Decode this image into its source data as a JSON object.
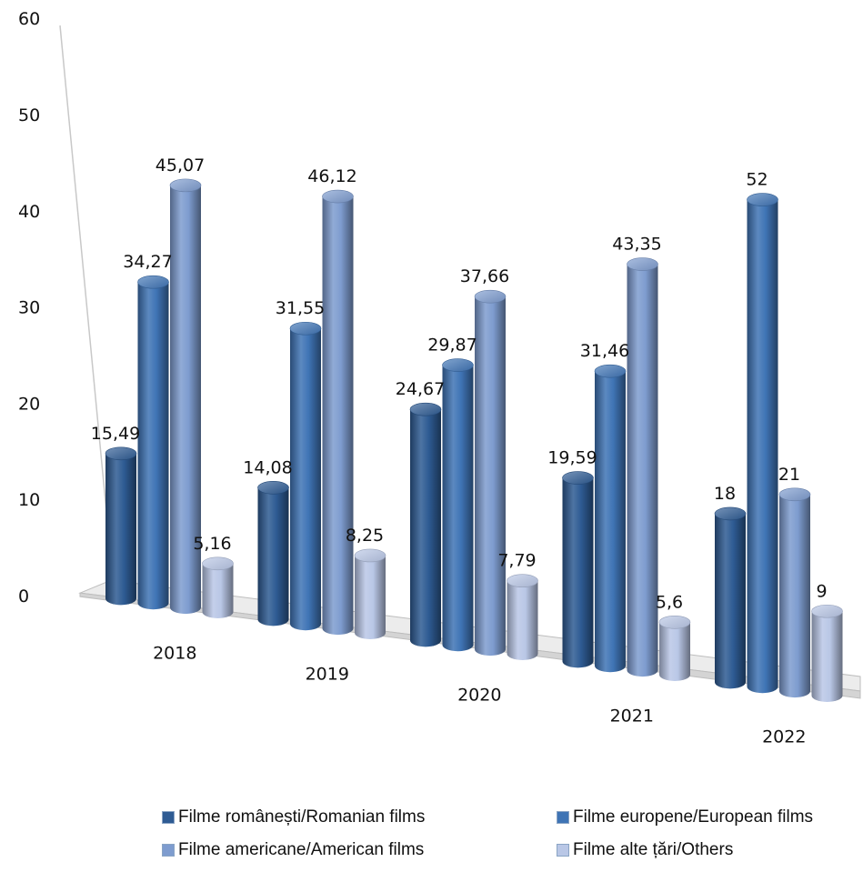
{
  "chart_data": {
    "type": "bar",
    "title": "",
    "xlabel": "",
    "ylabel": "",
    "ylim": [
      0,
      60
    ],
    "yticks": [
      0,
      10,
      20,
      30,
      40,
      50,
      60
    ],
    "categories": [
      "2018",
      "2019",
      "2020",
      "2021",
      "2022"
    ],
    "series": [
      {
        "name": "Filme românești/Romanian films",
        "values": [
          15.49,
          14.08,
          24.67,
          19.59,
          18
        ],
        "labels": [
          "15,49",
          "14,08",
          "24,67",
          "19,59",
          "18"
        ],
        "color": "#2e5b93"
      },
      {
        "name": "Filme europene/European films",
        "values": [
          34.27,
          31.55,
          29.87,
          31.46,
          52
        ],
        "labels": [
          "34,27",
          "31,55",
          "29,87",
          "31,46",
          "52"
        ],
        "color": "#3f74b5"
      },
      {
        "name": "Filme americane/American films",
        "values": [
          45.07,
          46.12,
          37.66,
          43.35,
          21
        ],
        "labels": [
          "45,07",
          "46,12",
          "37,66",
          "43,35",
          "21"
        ],
        "color": "#7e9ccf"
      },
      {
        "name": "Filme alte țări/Others",
        "values": [
          5.16,
          8.25,
          7.79,
          5.6,
          9
        ],
        "labels": [
          "5,16",
          "8,25",
          "7,79",
          "5,6",
          "9"
        ],
        "color": "#b9c7e6"
      }
    ],
    "grid": false,
    "legend_position": "bottom"
  }
}
